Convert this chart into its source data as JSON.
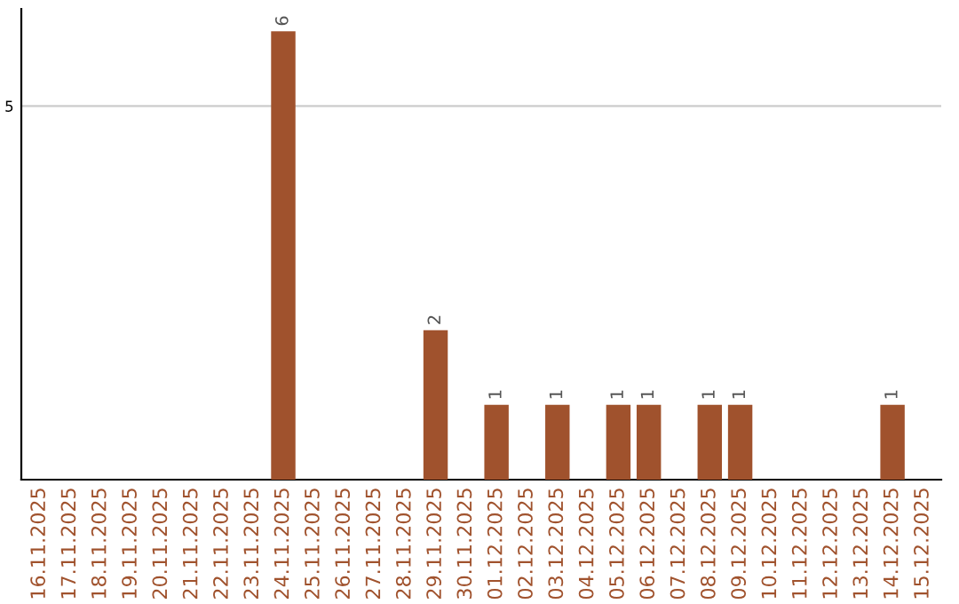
{
  "chart_data": {
    "type": "bar",
    "categories": [
      "16.11.2025",
      "17.11.2025",
      "18.11.2025",
      "19.11.2025",
      "20.11.2025",
      "21.11.2025",
      "22.11.2025",
      "23.11.2025",
      "24.11.2025",
      "25.11.2025",
      "26.11.2025",
      "27.11.2025",
      "28.11.2025",
      "29.11.2025",
      "30.11.2025",
      "01.12.2025",
      "02.12.2025",
      "03.12.2025",
      "04.12.2025",
      "05.12.2025",
      "06.12.2025",
      "07.12.2025",
      "08.12.2025",
      "09.12.2025",
      "10.12.2025",
      "11.12.2025",
      "12.12.2025",
      "13.12.2025",
      "14.12.2025",
      "15.12.2025"
    ],
    "values": [
      0,
      0,
      0,
      0,
      0,
      0,
      0,
      0,
      6,
      0,
      0,
      0,
      0,
      2,
      0,
      1,
      0,
      1,
      0,
      1,
      1,
      0,
      1,
      1,
      0,
      0,
      0,
      0,
      1,
      0
    ],
    "value_labels": [
      null,
      null,
      null,
      null,
      null,
      null,
      null,
      null,
      "6",
      null,
      null,
      null,
      null,
      "2",
      null,
      "1",
      null,
      "1",
      null,
      "1",
      "1",
      null,
      "1",
      "1",
      null,
      null,
      null,
      null,
      "1",
      null
    ],
    "color": "#a0522d",
    "ylim": [
      0,
      6.3
    ],
    "yticks": [
      5
    ],
    "grid": "y",
    "legend": false
  }
}
